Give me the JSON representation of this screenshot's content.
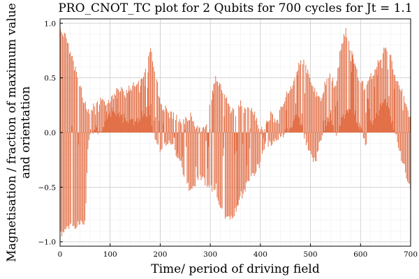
{
  "chart_data": {
    "type": "bar",
    "title": "PRO_CNOT_TC plot for 2 Qubits for 700 cycles for Jt = 1.1",
    "xlabel": "Time/ period of driving field",
    "ylabel_line1": "Magnetisation / fraction of maximum value",
    "ylabel_line2": "and orientation",
    "xlim": [
      0,
      700
    ],
    "ylim": [
      -1.04,
      1.04
    ],
    "x_ticks": [
      0,
      100,
      200,
      300,
      400,
      500,
      600,
      700
    ],
    "x_tick_labels": [
      "0",
      "100",
      "200",
      "300",
      "400",
      "500",
      "600",
      "700"
    ],
    "y_ticks": [
      -1.0,
      -0.5,
      0.0,
      0.5,
      1.0
    ],
    "y_tick_labels": [
      "−1.0",
      "−0.5",
      "0.0",
      "0.5",
      "1.0"
    ],
    "grid": true,
    "legend": "none",
    "color": "#E26F46",
    "n_cycles": 700,
    "envelope_x": [
      0,
      5,
      10,
      20,
      30,
      40,
      50,
      55,
      60,
      70,
      80,
      90,
      100,
      110,
      120,
      130,
      140,
      150,
      160,
      170,
      180,
      190,
      200,
      210,
      220,
      230,
      240,
      250,
      260,
      270,
      280,
      290,
      300,
      310,
      320,
      330,
      340,
      350,
      360,
      370,
      380,
      390,
      400,
      410,
      420,
      430,
      440,
      450,
      460,
      470,
      480,
      490,
      500,
      510,
      520,
      530,
      540,
      550,
      560,
      570,
      580,
      590,
      600,
      610,
      620,
      630,
      640,
      650,
      660,
      670,
      680,
      690,
      700
    ],
    "envelope_upper": [
      1.0,
      0.95,
      0.92,
      0.78,
      0.62,
      0.45,
      0.3,
      0.2,
      0.25,
      0.3,
      0.35,
      0.3,
      0.35,
      0.4,
      0.45,
      0.38,
      0.45,
      0.5,
      0.5,
      0.62,
      0.82,
      0.6,
      0.3,
      0.25,
      0.2,
      0.18,
      0.12,
      0.15,
      0.2,
      0.1,
      0.05,
      0.1,
      0.3,
      0.55,
      0.48,
      0.35,
      0.25,
      0.2,
      0.3,
      0.22,
      0.28,
      0.18,
      0.05,
      0.1,
      0.2,
      0.15,
      0.25,
      0.35,
      0.45,
      0.55,
      0.7,
      0.65,
      0.5,
      0.4,
      0.35,
      0.5,
      0.55,
      0.45,
      0.8,
      0.98,
      0.78,
      0.65,
      0.5,
      0.45,
      0.55,
      0.65,
      0.72,
      0.85,
      0.72,
      0.55,
      0.45,
      0.3,
      0.15
    ],
    "envelope_lower": [
      -0.95,
      -0.97,
      -0.95,
      -0.9,
      -0.88,
      -0.88,
      -0.85,
      -0.2,
      -0.05,
      0.0,
      -0.05,
      0.05,
      0.15,
      0.1,
      0.12,
      0.05,
      0.1,
      0.05,
      0.1,
      0.15,
      0.1,
      -0.1,
      -0.25,
      -0.15,
      -0.12,
      -0.2,
      -0.3,
      -0.5,
      -0.55,
      -0.5,
      -0.45,
      -0.5,
      -0.55,
      -0.6,
      -0.75,
      -0.8,
      -0.82,
      -0.75,
      -0.65,
      -0.55,
      -0.45,
      -0.4,
      -0.3,
      -0.15,
      -0.15,
      -0.1,
      -0.05,
      -0.05,
      0.0,
      0.1,
      0.05,
      -0.1,
      -0.25,
      -0.3,
      -0.1,
      0.05,
      0.1,
      -0.05,
      0.05,
      0.15,
      0.2,
      0.1,
      0.0,
      -0.15,
      0.05,
      0.1,
      0.2,
      0.25,
      0.1,
      -0.05,
      -0.25,
      -0.4,
      -0.55
    ]
  }
}
